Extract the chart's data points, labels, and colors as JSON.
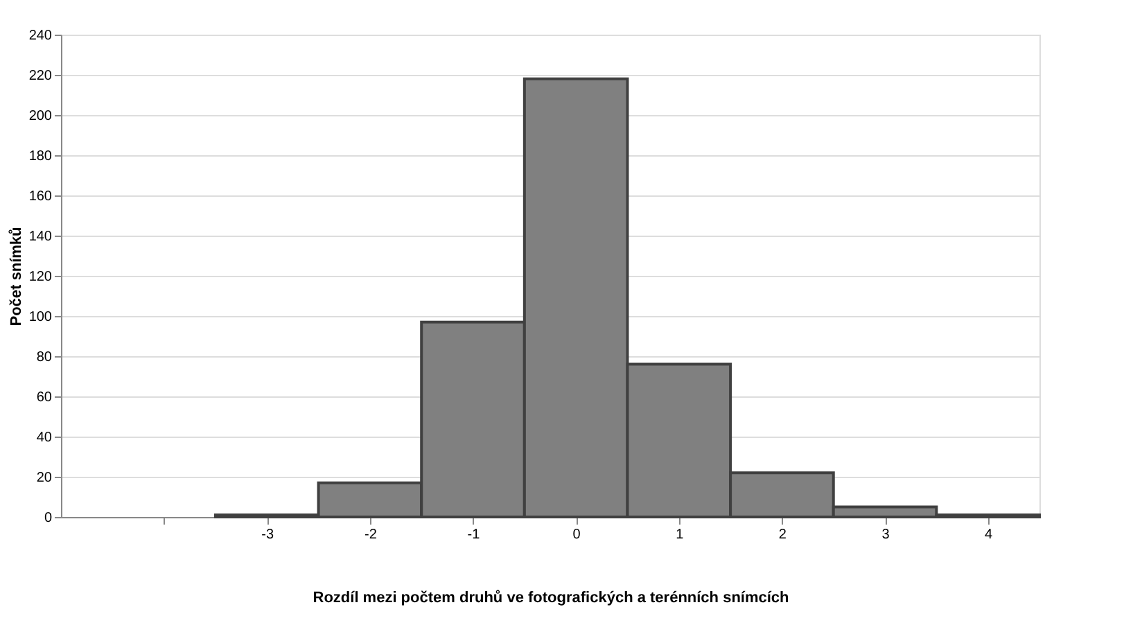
{
  "chart_data": {
    "type": "histogram",
    "xlabel": "Rozdíl mezi počtem druhů ve fotografických a terénních snímcích",
    "ylabel": "Počet snímků",
    "bins": [
      -3.5,
      -2.5,
      -1.5,
      -0.5,
      0.5,
      1.5,
      2.5,
      3.5,
      4.5
    ],
    "values": [
      1,
      17,
      97,
      218,
      76,
      22,
      5,
      1
    ],
    "color": "#808080",
    "xlim": [
      -5,
      4.5
    ],
    "xticks": [
      {
        "value": -4,
        "label": null
      },
      -3,
      -2,
      -1,
      0,
      1,
      2,
      3,
      4
    ],
    "ylim": [
      0,
      240
    ],
    "yticks": [
      0,
      20,
      40,
      60,
      80,
      100,
      120,
      140,
      160,
      180,
      200,
      220,
      240
    ],
    "grid": "y"
  }
}
